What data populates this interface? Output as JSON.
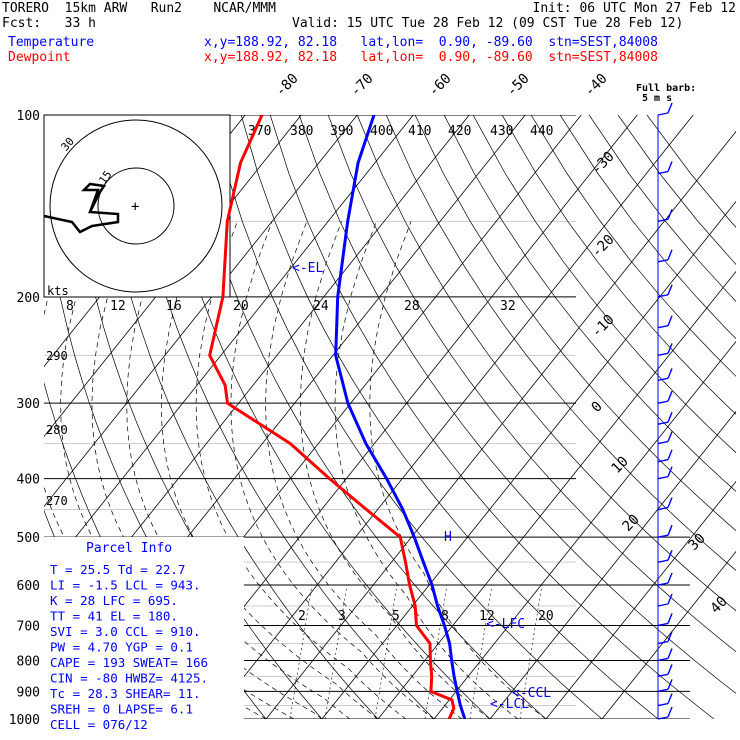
{
  "header": {
    "title": "TORERO  15km ARW   Run2    NCAR/MMM",
    "init": "Init: 06 UTC Mon 27 Feb 12",
    "fcst": "Fcst:   33 h",
    "valid": "Valid: 15 UTC Tue 28 Feb 12 (09 CST Tue 28 Feb 12)",
    "lines": [
      {
        "name": "Temperature",
        "info": "x,y=188.92, 82.18   lat,lon=  0.90, -89.60  stn=SEST,84008",
        "color": "#0000ff"
      },
      {
        "name": "Dewpoint",
        "info": "x,y=188.92, 82.18   lat,lon=  0.90, -89.60  stn=SEST,84008",
        "color": "#ff0000"
      }
    ]
  },
  "barb_legend": {
    "line1": "Full barb:",
    "line2": "5 m s"
  },
  "colors": {
    "temperature": "#0000ff",
    "dewpoint": "#ff0000",
    "barb": "#0000ff",
    "grid": "#000000"
  },
  "chart_data": {
    "type": "line",
    "title": "Skew-T log-P sounding",
    "pressure_levels": [
      "100",
      "200",
      "300",
      "400",
      "500",
      "600",
      "700",
      "800",
      "900",
      "1000"
    ],
    "pressure_values": [
      100,
      200,
      300,
      400,
      500,
      600,
      700,
      800,
      900,
      1000
    ],
    "isotherm_labels": [
      "-80",
      "-70",
      "-60",
      "-50",
      "-40",
      "-30",
      "-20",
      "-10",
      "0",
      "10",
      "20",
      "30",
      "40"
    ],
    "theta_e_labels": [
      "370",
      "380",
      "390",
      "400",
      "410",
      "420",
      "430",
      "440"
    ],
    "mixing_ratio_labels": [
      "2",
      "3",
      "5",
      "8",
      "12",
      "20"
    ],
    "upper_ratio_labels": [
      "8",
      "12",
      "16",
      "20",
      "24",
      "28",
      "32"
    ],
    "lower_theta_labels": [
      "290",
      "280",
      "270"
    ],
    "hodograph_labels": [
      "kts",
      "15",
      "30"
    ],
    "annotations": [
      "<-EL",
      "<-LFC",
      "<-CCL",
      "<-LCL",
      "H"
    ],
    "series": [
      {
        "name": "Temperature",
        "pressure": [
          1000,
          950,
          900,
          850,
          800,
          750,
          700,
          650,
          600,
          550,
          500,
          450,
          400,
          350,
          300,
          250,
          200,
          150,
          120,
          100
        ],
        "values": [
          25.5,
          22.8,
          20.2,
          17.5,
          14.8,
          12.0,
          8.5,
          4.5,
          0.5,
          -4.3,
          -9.5,
          -15.5,
          -22.8,
          -31.5,
          -40.5,
          -49.5,
          -57.5,
          -66.5,
          -73.0,
          -77.0
        ]
      },
      {
        "name": "Dewpoint",
        "pressure": [
          1000,
          960,
          930,
          900,
          850,
          800,
          750,
          700,
          650,
          600,
          550,
          500,
          450,
          400,
          350,
          300,
          280,
          250,
          200,
          150,
          120,
          100
        ],
        "values": [
          22.7,
          22.0,
          20.5,
          15.5,
          13.5,
          11.0,
          8.5,
          3.5,
          0.5,
          -3.5,
          -7.5,
          -12.0,
          -22.0,
          -33.0,
          -45.0,
          -62.0,
          -65.0,
          -72.0,
          -78.0,
          -88.0,
          -94.0,
          -97.0
        ]
      }
    ],
    "wind_barbs": [
      {
        "pressure": 100,
        "dir": 200,
        "spd": 15
      },
      {
        "pressure": 125,
        "dir": 210,
        "spd": 12
      },
      {
        "pressure": 150,
        "dir": 220,
        "spd": 10
      },
      {
        "pressure": 175,
        "dir": 230,
        "spd": 8
      },
      {
        "pressure": 200,
        "dir": 240,
        "spd": 8
      },
      {
        "pressure": 225,
        "dir": 250,
        "spd": 10
      },
      {
        "pressure": 250,
        "dir": 255,
        "spd": 12
      },
      {
        "pressure": 275,
        "dir": 255,
        "spd": 14
      },
      {
        "pressure": 300,
        "dir": 250,
        "spd": 14
      },
      {
        "pressure": 325,
        "dir": 250,
        "spd": 14
      },
      {
        "pressure": 350,
        "dir": 250,
        "spd": 12
      },
      {
        "pressure": 375,
        "dir": 240,
        "spd": 10
      },
      {
        "pressure": 400,
        "dir": 240,
        "spd": 10
      },
      {
        "pressure": 450,
        "dir": 230,
        "spd": 8
      },
      {
        "pressure": 500,
        "dir": 220,
        "spd": 8
      },
      {
        "pressure": 550,
        "dir": 200,
        "spd": 6
      },
      {
        "pressure": 600,
        "dir": 180,
        "spd": 4
      },
      {
        "pressure": 650,
        "dir": 160,
        "spd": 4
      },
      {
        "pressure": 700,
        "dir": 150,
        "spd": 4
      },
      {
        "pressure": 750,
        "dir": 140,
        "spd": 4
      },
      {
        "pressure": 800,
        "dir": 130,
        "spd": 4
      },
      {
        "pressure": 850,
        "dir": 120,
        "spd": 4
      },
      {
        "pressure": 900,
        "dir": 110,
        "spd": 4
      },
      {
        "pressure": 950,
        "dir": 100,
        "spd": 4
      },
      {
        "pressure": 1000,
        "dir": 90,
        "spd": 4
      }
    ]
  },
  "parcel_info": {
    "title": "Parcel Info",
    "rows": [
      "T  =    25.5  Td =  22.7",
      "LI =    -1.5  LCL =  943.",
      "K  =      28  LFC =  695.",
      "TT =      41  EL  =  180.",
      "SVI =    3.0  CCL =  910.",
      "PW =    4.70  YGP =   0.1",
      "CAPE =   193  SWEAT=  166",
      "CIN =    -80  HWBZ= 4125.",
      "Tc =    28.3  SHEAR=   11.",
      "SREH =     0  LAPSE=   6.1",
      "CELL = 076/12"
    ]
  }
}
